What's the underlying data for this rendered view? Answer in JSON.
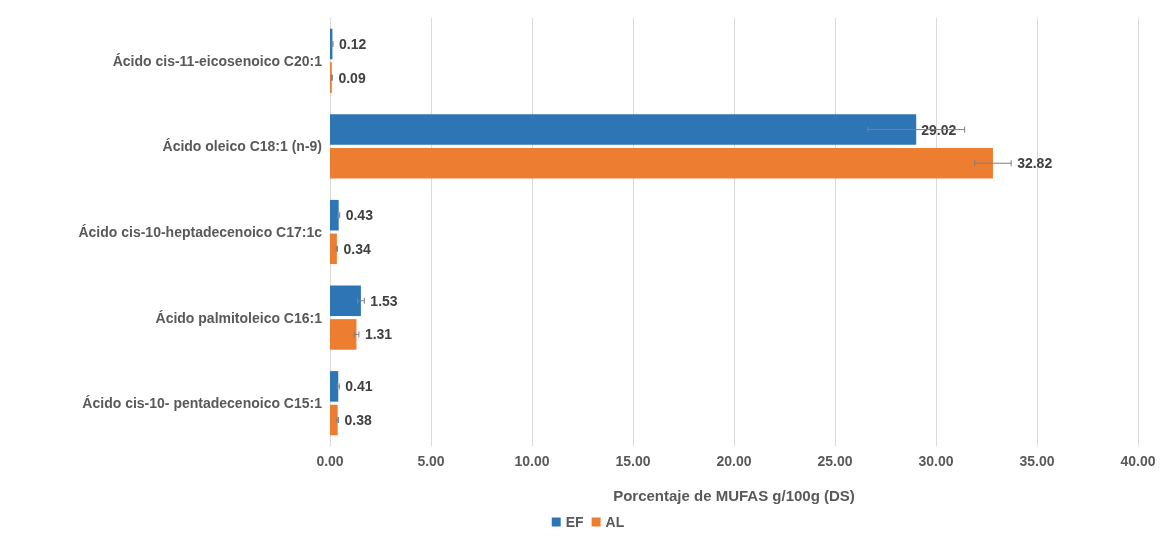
{
  "chart_data": {
    "type": "bar",
    "orientation": "horizontal",
    "xlabel": "Porcentaje de MUFAS g/100g (DS)",
    "categories": [
      "Ácido cis-11-eicosenoico C20:1",
      "Ácido oleico C18:1 (n-9)",
      "Ácido cis-10-heptadecenoico C17:1c",
      "Ácido palmitoleico C16:1",
      "Ácido cis-10- pentadecenoico C15:1"
    ],
    "series": [
      {
        "name": "EF",
        "color": "#2e75b6",
        "values": [
          0.12,
          29.02,
          0.43,
          1.53,
          0.41
        ],
        "errors": [
          0.03,
          2.4,
          0.05,
          0.17,
          0.05
        ]
      },
      {
        "name": "AL",
        "color": "#ed7d31",
        "values": [
          0.09,
          32.82,
          0.34,
          1.31,
          0.38
        ],
        "errors": [
          0.03,
          0.9,
          0.03,
          0.12,
          0.04
        ]
      }
    ],
    "xlim": [
      0,
      40
    ],
    "xticks": [
      {
        "value": 0,
        "label": "0.00"
      },
      {
        "value": 5,
        "label": "5.00"
      },
      {
        "value": 10,
        "label": "10.00"
      },
      {
        "value": 15,
        "label": "15.00"
      },
      {
        "value": 20,
        "label": "20.00"
      },
      {
        "value": 25,
        "label": "25.00"
      },
      {
        "value": 30,
        "label": "30.00"
      },
      {
        "value": 35,
        "label": "35.00"
      },
      {
        "value": 40,
        "label": "40.00"
      }
    ],
    "grid": "x",
    "legend": "bottom",
    "data_labels": true
  }
}
